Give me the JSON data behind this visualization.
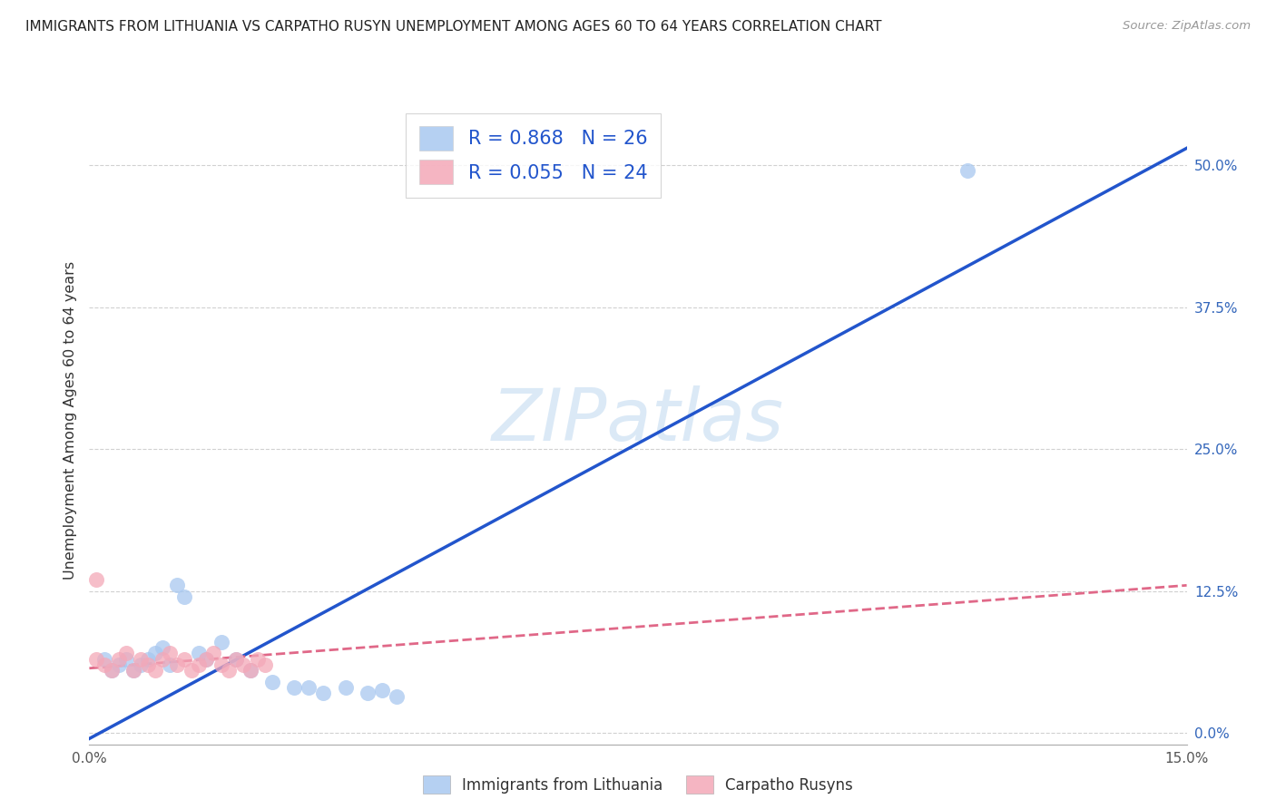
{
  "title": "IMMIGRANTS FROM LITHUANIA VS CARPATHO RUSYN UNEMPLOYMENT AMONG AGES 60 TO 64 YEARS CORRELATION CHART",
  "source": "Source: ZipAtlas.com",
  "ylabel": "Unemployment Among Ages 60 to 64 years",
  "xlim": [
    0.0,
    0.15
  ],
  "ylim": [
    -0.01,
    0.56
  ],
  "yticks": [
    0.0,
    0.125,
    0.25,
    0.375,
    0.5
  ],
  "ytick_labels": [
    "0.0%",
    "12.5%",
    "25.0%",
    "37.5%",
    "50.0%"
  ],
  "xticks": [
    0.0,
    0.05,
    0.1,
    0.15
  ],
  "xtick_labels": [
    "0.0%",
    "",
    "",
    "15.0%"
  ],
  "watermark": "ZIPatlas",
  "legend_R1": "R = 0.868",
  "legend_N1": "N = 26",
  "legend_R2": "R = 0.055",
  "legend_N2": "N = 24",
  "color_blue": "#a8c8f0",
  "color_pink": "#f4a8b8",
  "line_blue": "#2255cc",
  "line_pink": "#e06888",
  "legend_label1": "Immigrants from Lithuania",
  "legend_label2": "Carpatho Rusyns",
  "blue_scatter_x": [
    0.002,
    0.003,
    0.004,
    0.005,
    0.006,
    0.007,
    0.008,
    0.009,
    0.01,
    0.011,
    0.012,
    0.013,
    0.015,
    0.016,
    0.018,
    0.02,
    0.022,
    0.025,
    0.028,
    0.03,
    0.032,
    0.035,
    0.038,
    0.04,
    0.042,
    0.12
  ],
  "blue_scatter_y": [
    0.065,
    0.055,
    0.06,
    0.065,
    0.055,
    0.06,
    0.065,
    0.07,
    0.075,
    0.06,
    0.13,
    0.12,
    0.07,
    0.065,
    0.08,
    0.065,
    0.055,
    0.045,
    0.04,
    0.04,
    0.035,
    0.04,
    0.035,
    0.038,
    0.032,
    0.495
  ],
  "pink_scatter_x": [
    0.001,
    0.002,
    0.003,
    0.004,
    0.005,
    0.006,
    0.007,
    0.008,
    0.009,
    0.01,
    0.011,
    0.012,
    0.013,
    0.014,
    0.015,
    0.016,
    0.017,
    0.018,
    0.019,
    0.02,
    0.021,
    0.022,
    0.023,
    0.024
  ],
  "pink_scatter_y": [
    0.065,
    0.06,
    0.055,
    0.065,
    0.07,
    0.055,
    0.065,
    0.06,
    0.055,
    0.065,
    0.07,
    0.06,
    0.065,
    0.055,
    0.06,
    0.065,
    0.07,
    0.06,
    0.055,
    0.065,
    0.06,
    0.055,
    0.065,
    0.06
  ],
  "pink_outlier_x": [
    0.001
  ],
  "pink_outlier_y": [
    0.135
  ],
  "blue_line_x": [
    0.0,
    0.15
  ],
  "blue_line_y": [
    -0.005,
    0.515
  ],
  "pink_line_x": [
    0.0,
    0.15
  ],
  "pink_line_y": [
    0.057,
    0.13
  ]
}
